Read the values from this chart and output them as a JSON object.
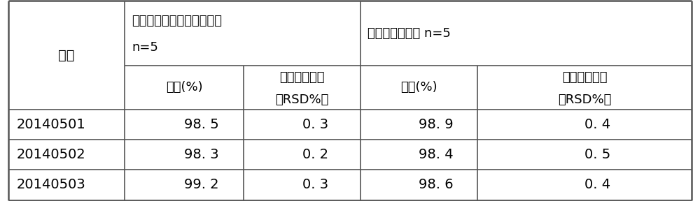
{
  "col1_header": "批号",
  "col_group1_header_line1": "中和滴定法（凯氏定氮法）",
  "col_group1_header_line2": "n=5",
  "col_group2_header": "高效液相色谱法 n=5",
  "sub_col1": "含量(%)",
  "sub_col2_line1": "相对标准偏差",
  "sub_col2_line2": "（RSD%）",
  "sub_col3": "含量(%)",
  "sub_col4_line1": "相对标准偏差",
  "sub_col4_line2": "（RSD%）",
  "rows": [
    [
      "20140501",
      "98. 5",
      "0. 3",
      "98. 9",
      "0. 4"
    ],
    [
      "20140502",
      "98. 3",
      "0. 2",
      "98. 4",
      "0. 5"
    ],
    [
      "20140503",
      "99. 2",
      "0. 3",
      "98. 6",
      "0. 4"
    ]
  ],
  "bg_color": "#ffffff",
  "text_color": "#000000",
  "border_color": "#555555",
  "font_size": 13,
  "data_font_size": 13
}
